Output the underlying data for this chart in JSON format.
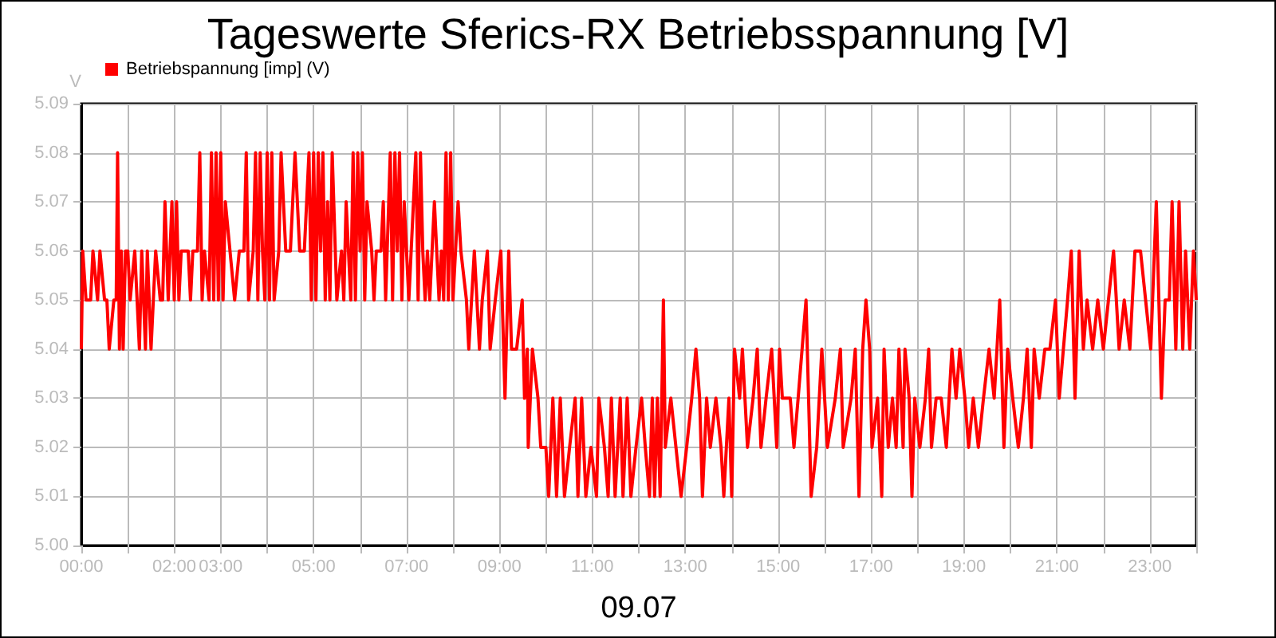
{
  "chart_data": {
    "type": "line",
    "title": "Tageswerte Sferics-RX Betriebsspannung [V]",
    "xlabel": "09.07",
    "ylabel": "V",
    "series": [
      {
        "name": "Betriebspannung [imp] (V)",
        "color": "#ff0000",
        "x": [
          0,
          0.03,
          0.1,
          0.2,
          0.25,
          0.35,
          0.4,
          0.5,
          0.55,
          0.6,
          0.7,
          0.75,
          0.78,
          0.82,
          0.86,
          0.9,
          0.95,
          1.0,
          1.05,
          1.15,
          1.25,
          1.3,
          1.38,
          1.42,
          1.5,
          1.55,
          1.6,
          1.7,
          1.75,
          1.8,
          1.87,
          1.95,
          2.0,
          2.05,
          2.1,
          2.15,
          2.3,
          2.35,
          2.4,
          2.5,
          2.55,
          2.6,
          2.65,
          2.75,
          2.8,
          2.85,
          2.9,
          2.95,
          3.0,
          3.05,
          3.1,
          3.2,
          3.3,
          3.4,
          3.5,
          3.55,
          3.6,
          3.7,
          3.75,
          3.8,
          3.85,
          3.9,
          3.95,
          4.0,
          4.05,
          4.1,
          4.15,
          4.25,
          4.3,
          4.4,
          4.5,
          4.6,
          4.7,
          4.8,
          4.9,
          4.95,
          5.0,
          5.05,
          5.1,
          5.15,
          5.2,
          5.25,
          5.3,
          5.35,
          5.4,
          5.5,
          5.6,
          5.65,
          5.7,
          5.75,
          5.8,
          5.85,
          5.9,
          5.95,
          6.0,
          6.05,
          6.1,
          6.15,
          6.25,
          6.3,
          6.35,
          6.45,
          6.5,
          6.55,
          6.65,
          6.7,
          6.75,
          6.8,
          6.85,
          6.9,
          6.95,
          7.0,
          7.05,
          7.1,
          7.2,
          7.25,
          7.3,
          7.35,
          7.4,
          7.45,
          7.5,
          7.55,
          7.6,
          7.7,
          7.75,
          7.8,
          7.85,
          7.9,
          7.95,
          8.0,
          8.11,
          8.17,
          8.29,
          8.34,
          8.4,
          8.46,
          8.57,
          8.63,
          8.74,
          8.8,
          8.91,
          9.03,
          9.12,
          9.2,
          9.26,
          9.37,
          9.49,
          9.54,
          9.6,
          9.62,
          9.71,
          9.83,
          9.89,
          10.0,
          10.06,
          10.15,
          10.23,
          10.31,
          10.4,
          10.51,
          10.63,
          10.69,
          10.77,
          10.86,
          10.97,
          11.09,
          11.14,
          11.26,
          11.34,
          11.41,
          11.49,
          11.6,
          11.66,
          11.75,
          11.83,
          11.94,
          12.06,
          12.14,
          12.23,
          12.29,
          12.34,
          12.4,
          12.46,
          12.53,
          12.57,
          12.69,
          12.8,
          12.91,
          13.03,
          13.14,
          13.23,
          13.31,
          13.37,
          13.46,
          13.54,
          13.66,
          13.77,
          13.83,
          13.94,
          14.0,
          14.06,
          14.17,
          14.23,
          14.34,
          14.46,
          14.55,
          14.63,
          14.74,
          14.86,
          14.97,
          15.03,
          15.09,
          15.26,
          15.34,
          15.43,
          15.6,
          15.71,
          15.83,
          15.94,
          16.06,
          16.23,
          16.34,
          16.4,
          16.57,
          16.66,
          16.74,
          16.82,
          16.89,
          16.97,
          17.02,
          17.14,
          17.23,
          17.28,
          17.37,
          17.46,
          17.54,
          17.6,
          17.69,
          17.73,
          17.82,
          17.88,
          17.94,
          18.05,
          18.17,
          18.24,
          18.3,
          18.4,
          18.51,
          18.62,
          18.74,
          18.83,
          18.91,
          19.02,
          19.1,
          19.2,
          19.31,
          19.42,
          19.54,
          19.65,
          19.77,
          19.86,
          19.94,
          20.05,
          20.17,
          20.28,
          20.36,
          20.45,
          20.51,
          20.62,
          20.74,
          20.85,
          20.97,
          21.05,
          21.14,
          21.23,
          21.31,
          21.39,
          21.48,
          21.57,
          21.65,
          21.77,
          21.88,
          22.0,
          22.11,
          22.22,
          22.34,
          22.45,
          22.57,
          22.68,
          22.8,
          22.91,
          23.02,
          23.14,
          23.25,
          23.33,
          23.42,
          23.48,
          23.56,
          23.63,
          23.71,
          23.77,
          23.86,
          23.94,
          24.0
        ],
        "values": [
          5.04,
          5.06,
          5.05,
          5.05,
          5.06,
          5.05,
          5.06,
          5.05,
          5.05,
          5.04,
          5.05,
          5.05,
          5.08,
          5.04,
          5.06,
          5.04,
          5.06,
          5.06,
          5.05,
          5.06,
          5.04,
          5.06,
          5.04,
          5.06,
          5.04,
          5.05,
          5.06,
          5.05,
          5.05,
          5.07,
          5.05,
          5.07,
          5.05,
          5.07,
          5.05,
          5.06,
          5.06,
          5.05,
          5.06,
          5.06,
          5.08,
          5.05,
          5.06,
          5.05,
          5.08,
          5.05,
          5.08,
          5.05,
          5.08,
          5.05,
          5.07,
          5.06,
          5.05,
          5.06,
          5.06,
          5.08,
          5.05,
          5.06,
          5.08,
          5.05,
          5.08,
          5.06,
          5.05,
          5.08,
          5.05,
          5.08,
          5.05,
          5.06,
          5.08,
          5.06,
          5.06,
          5.08,
          5.06,
          5.06,
          5.08,
          5.05,
          5.08,
          5.05,
          5.08,
          5.06,
          5.08,
          5.05,
          5.07,
          5.05,
          5.08,
          5.05,
          5.06,
          5.05,
          5.07,
          5.06,
          5.05,
          5.08,
          5.05,
          5.08,
          5.06,
          5.08,
          5.05,
          5.07,
          5.06,
          5.05,
          5.06,
          5.06,
          5.07,
          5.05,
          5.08,
          5.05,
          5.08,
          5.06,
          5.08,
          5.05,
          5.07,
          5.06,
          5.05,
          5.06,
          5.08,
          5.05,
          5.08,
          5.06,
          5.05,
          5.06,
          5.05,
          5.06,
          5.07,
          5.05,
          5.06,
          5.05,
          5.08,
          5.05,
          5.08,
          5.05,
          5.07,
          5.06,
          5.05,
          5.04,
          5.05,
          5.06,
          5.04,
          5.05,
          5.06,
          5.04,
          5.05,
          5.06,
          5.03,
          5.06,
          5.04,
          5.04,
          5.05,
          5.03,
          5.04,
          5.02,
          5.04,
          5.03,
          5.02,
          5.02,
          5.01,
          5.03,
          5.01,
          5.03,
          5.01,
          5.02,
          5.03,
          5.01,
          5.03,
          5.01,
          5.02,
          5.01,
          5.03,
          5.02,
          5.01,
          5.03,
          5.01,
          5.03,
          5.01,
          5.03,
          5.01,
          5.02,
          5.03,
          5.02,
          5.01,
          5.03,
          5.01,
          5.03,
          5.01,
          5.05,
          5.02,
          5.03,
          5.02,
          5.01,
          5.02,
          5.03,
          5.04,
          5.03,
          5.01,
          5.03,
          5.02,
          5.03,
          5.02,
          5.01,
          5.03,
          5.01,
          5.04,
          5.03,
          5.04,
          5.02,
          5.03,
          5.04,
          5.02,
          5.03,
          5.04,
          5.02,
          5.04,
          5.03,
          5.03,
          5.02,
          5.03,
          5.05,
          5.01,
          5.02,
          5.04,
          5.02,
          5.03,
          5.04,
          5.02,
          5.03,
          5.04,
          5.01,
          5.04,
          5.05,
          5.04,
          5.02,
          5.03,
          5.01,
          5.04,
          5.02,
          5.03,
          5.02,
          5.04,
          5.02,
          5.04,
          5.03,
          5.01,
          5.03,
          5.02,
          5.03,
          5.04,
          5.02,
          5.03,
          5.03,
          5.02,
          5.04,
          5.03,
          5.04,
          5.03,
          5.02,
          5.03,
          5.02,
          5.03,
          5.04,
          5.03,
          5.05,
          5.02,
          5.04,
          5.03,
          5.02,
          5.03,
          5.04,
          5.02,
          5.04,
          5.03,
          5.04,
          5.04,
          5.05,
          5.03,
          5.04,
          5.05,
          5.06,
          5.03,
          5.06,
          5.04,
          5.05,
          5.04,
          5.05,
          5.04,
          5.05,
          5.06,
          5.04,
          5.05,
          5.04,
          5.06,
          5.06,
          5.05,
          5.04,
          5.07,
          5.03,
          5.05,
          5.05,
          5.07,
          5.04,
          5.07,
          5.04,
          5.06,
          5.04,
          5.06,
          5.05
        ]
      }
    ],
    "xlim": [
      0,
      24
    ],
    "xticks": [
      {
        "value": 0,
        "label": "00:00"
      },
      {
        "value": 1,
        "label": null
      },
      {
        "value": 2,
        "label": "02:00"
      },
      {
        "value": 3,
        "label": "03:00"
      },
      {
        "value": 4,
        "label": null
      },
      {
        "value": 5,
        "label": "05:00"
      },
      {
        "value": 6,
        "label": null
      },
      {
        "value": 7,
        "label": "07:00"
      },
      {
        "value": 8,
        "label": null
      },
      {
        "value": 9,
        "label": "09:00"
      },
      {
        "value": 10,
        "label": null
      },
      {
        "value": 11,
        "label": "11:00"
      },
      {
        "value": 12,
        "label": null
      },
      {
        "value": 13,
        "label": "13:00"
      },
      {
        "value": 14,
        "label": null
      },
      {
        "value": 15,
        "label": "15:00"
      },
      {
        "value": 16,
        "label": null
      },
      {
        "value": 17,
        "label": "17:00"
      },
      {
        "value": 18,
        "label": null
      },
      {
        "value": 19,
        "label": "19:00"
      },
      {
        "value": 20,
        "label": null
      },
      {
        "value": 21,
        "label": "21:00"
      },
      {
        "value": 22,
        "label": null
      },
      {
        "value": 23,
        "label": "23:00"
      },
      {
        "value": 24,
        "label": null
      }
    ],
    "ylim": [
      5.0,
      5.09
    ],
    "yticks": [
      {
        "value": 5,
        "label": "5.00"
      },
      5.01,
      5.02,
      5.03,
      5.04,
      5.05,
      5.06,
      5.07,
      5.08,
      5.09
    ],
    "grid": true,
    "legend": "top left",
    "marker": "none",
    "line_style": "solid"
  }
}
